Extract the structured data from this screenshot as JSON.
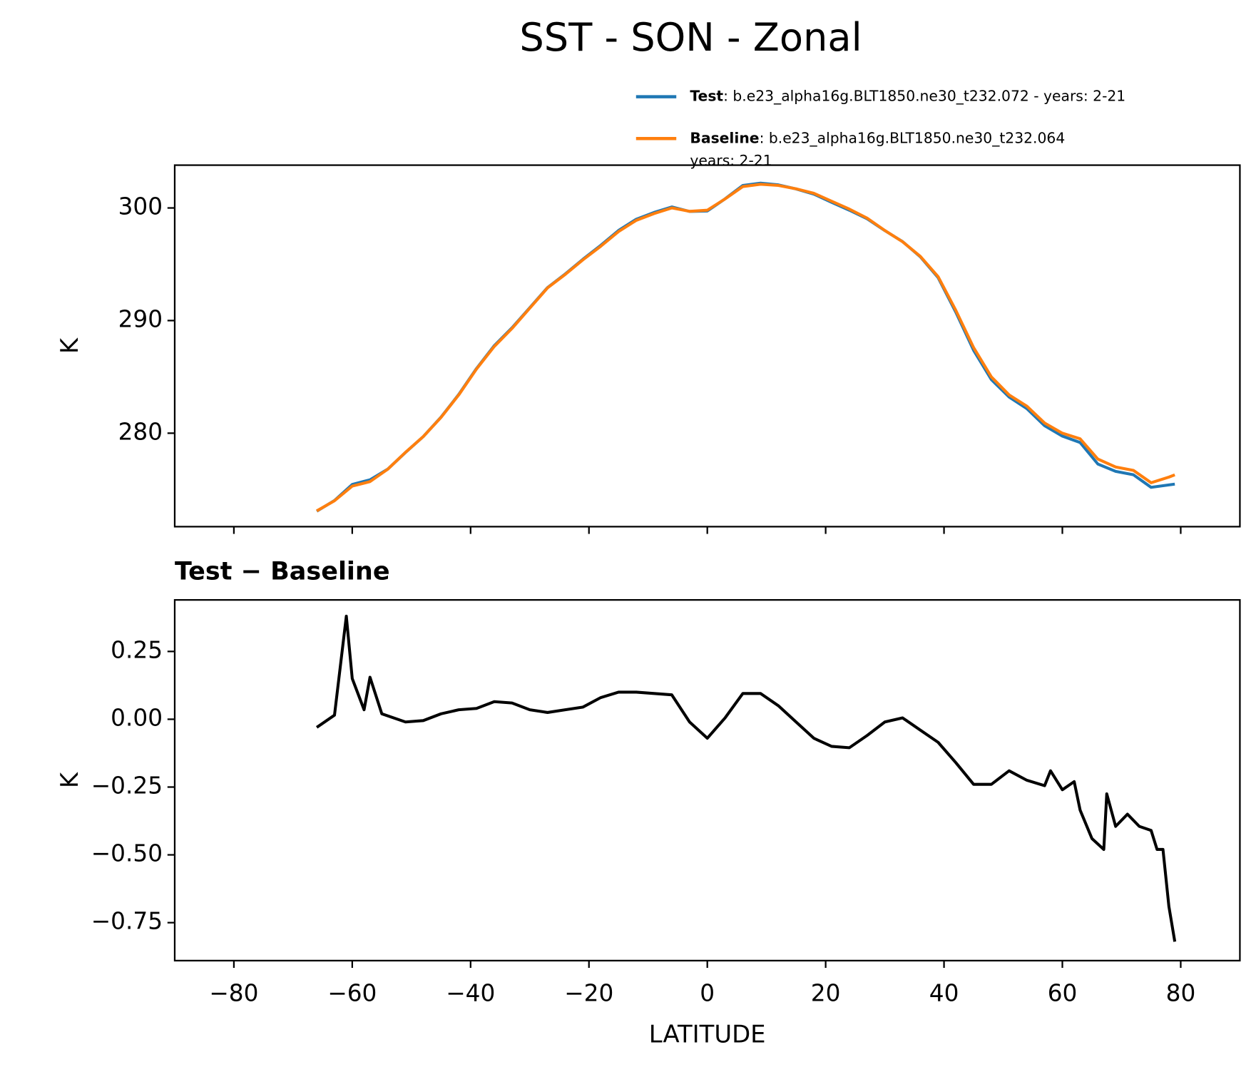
{
  "suptitle": "SST - SON - Zonal",
  "chart_data": [
    {
      "type": "line",
      "ylabel": "K",
      "xlim": [
        -90,
        90
      ],
      "xticks": [
        -80,
        -60,
        -40,
        -20,
        0,
        20,
        40,
        60,
        80
      ],
      "ylim": [
        271.7,
        303.8
      ],
      "yticks": [
        280,
        290,
        300
      ],
      "x": [
        -66,
        -63,
        -60,
        -57,
        -54,
        -51,
        -48,
        -45,
        -42,
        -39,
        -36,
        -33,
        -30,
        -27,
        -24,
        -21,
        -18,
        -15,
        -12,
        -9,
        -6,
        -3,
        0,
        3,
        6,
        9,
        12,
        15,
        18,
        21,
        24,
        27,
        30,
        33,
        36,
        39,
        42,
        45,
        48,
        51,
        54,
        57,
        60,
        63,
        66,
        69,
        72,
        75,
        78,
        79
      ],
      "series": [
        {
          "name": "Test",
          "description": [
            ": b.e23_alpha16g.BLT1850.ne30_t232.072 - years: 2-21"
          ],
          "color": "#1f77b4",
          "values": [
            273.07,
            274.02,
            275.45,
            275.86,
            276.81,
            278.29,
            279.7,
            281.42,
            283.44,
            285.74,
            287.77,
            289.36,
            291.14,
            292.93,
            294.14,
            295.45,
            296.68,
            298.0,
            299.0,
            299.6,
            300.09,
            299.69,
            299.73,
            300.81,
            302.0,
            302.2,
            302.05,
            301.69,
            301.23,
            300.5,
            299.8,
            299.04,
            297.99,
            297.01,
            295.66,
            293.82,
            290.74,
            287.36,
            284.76,
            283.21,
            282.18,
            280.66,
            279.74,
            279.17,
            277.26,
            276.61,
            276.31,
            275.19,
            275.41,
            275.48
          ]
        },
        {
          "name": "Baseline",
          "description": [
            ": b.e23_alpha16g.BLT1850.ne30_t232.064",
            "years: 2-21"
          ],
          "color": "#ff7f0e",
          "values": [
            273.1,
            274.0,
            275.3,
            275.7,
            276.8,
            278.3,
            279.7,
            281.4,
            283.4,
            285.7,
            287.7,
            289.3,
            291.1,
            292.9,
            294.1,
            295.4,
            296.6,
            297.9,
            298.9,
            299.5,
            300.0,
            299.7,
            299.8,
            300.8,
            301.9,
            302.1,
            302.0,
            301.7,
            301.3,
            300.6,
            299.9,
            299.1,
            298.0,
            297.0,
            295.7,
            293.9,
            290.9,
            287.6,
            285.0,
            283.4,
            282.4,
            280.9,
            280.0,
            279.5,
            277.7,
            277.0,
            276.7,
            275.6,
            276.1,
            276.3
          ]
        }
      ]
    },
    {
      "type": "line",
      "title": "Test − Baseline",
      "xlabel": "LATITUDE",
      "ylabel": "K",
      "xlim": [
        -90,
        90
      ],
      "xticks": [
        {
          "value": -80,
          "label": "−80"
        },
        {
          "value": -60,
          "label": "−60"
        },
        {
          "value": -40,
          "label": "−40"
        },
        {
          "value": -20,
          "label": "−20"
        },
        0,
        20,
        40,
        60,
        80
      ],
      "ylim": [
        -0.89,
        0.44
      ],
      "yticks": [
        {
          "value": -0.75,
          "label": "−0.75"
        },
        {
          "value": -0.5,
          "label": "−0.50"
        },
        {
          "value": -0.25,
          "label": "−0.25"
        },
        {
          "value": 0,
          "label": "0.00"
        },
        0.25
      ],
      "x": [
        -66,
        -63,
        -61,
        -60,
        -58,
        -57,
        -55,
        -51,
        -48,
        -45,
        -42,
        -39,
        -36,
        -33,
        -30,
        -27,
        -24,
        -21,
        -18,
        -15,
        -12,
        -9,
        -6,
        -3,
        0,
        3,
        6,
        9,
        12,
        15,
        18,
        21,
        24,
        27,
        30,
        33,
        36,
        39,
        42,
        45,
        48,
        51,
        54,
        57,
        58,
        60,
        62,
        63,
        65,
        67,
        67.5,
        69,
        71,
        73,
        75,
        76,
        77,
        78,
        79
      ],
      "series": [
        {
          "color": "#000000",
          "values": [
            -0.03,
            0.015,
            0.38,
            0.15,
            0.035,
            0.155,
            0.02,
            -0.01,
            -0.005,
            0.02,
            0.035,
            0.04,
            0.065,
            0.06,
            0.035,
            0.025,
            0.035,
            0.045,
            0.08,
            0.1,
            0.1,
            0.095,
            0.09,
            -0.01,
            -0.07,
            0.005,
            0.095,
            0.095,
            0.05,
            -0.01,
            -0.07,
            -0.1,
            -0.105,
            -0.06,
            -0.01,
            0.005,
            -0.04,
            -0.085,
            -0.16,
            -0.24,
            -0.24,
            -0.19,
            -0.225,
            -0.245,
            -0.19,
            -0.26,
            -0.23,
            -0.335,
            -0.44,
            -0.48,
            -0.275,
            -0.395,
            -0.35,
            -0.395,
            -0.41,
            -0.48,
            -0.48,
            -0.69,
            -0.82
          ]
        }
      ]
    }
  ]
}
